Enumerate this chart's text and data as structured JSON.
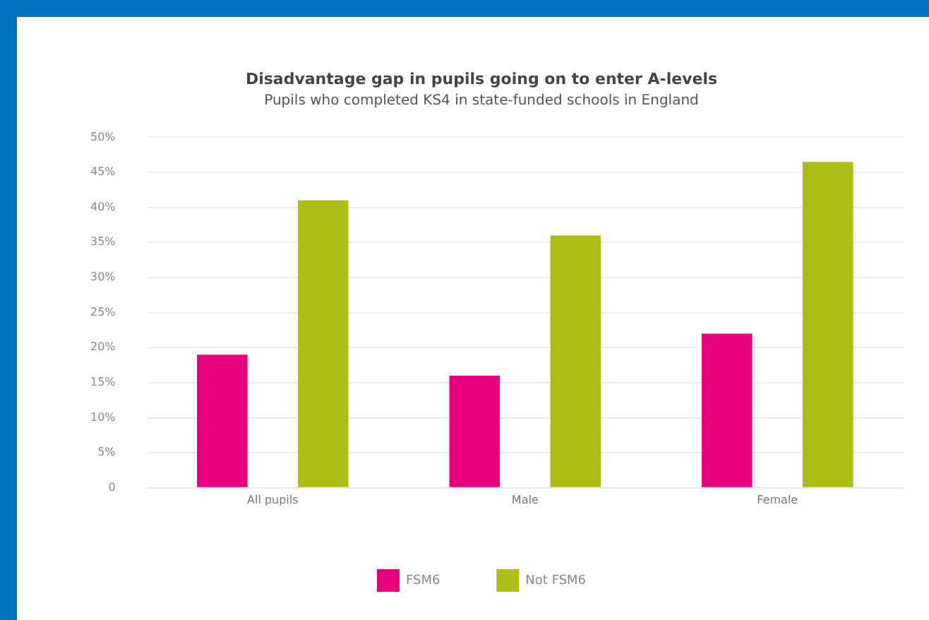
{
  "chart_data": {
    "type": "bar",
    "title": "Disadvantage gap in pupils going on to enter A-levels",
    "subtitle": "Pupils who completed KS4 in state-funded schools in England",
    "categories": [
      "All pupils",
      "Male",
      "Female"
    ],
    "series": [
      {
        "name": "FSM6",
        "color": "#e6007e",
        "values": [
          19,
          16,
          22
        ]
      },
      {
        "name": "Not FSM6",
        "color": "#aebd15",
        "values": [
          41,
          36,
          46.5
        ]
      }
    ],
    "ylim": [
      0,
      50
    ],
    "yticks": [
      0,
      {
        "value": 5,
        "label": "5%"
      },
      {
        "value": 10,
        "label": "10%"
      },
      {
        "value": 15,
        "label": "15%"
      },
      {
        "value": 20,
        "label": "20%"
      },
      {
        "value": 25,
        "label": "25%"
      },
      {
        "value": 30,
        "label": "30%"
      },
      {
        "value": 35,
        "label": "35%"
      },
      {
        "value": 40,
        "label": "40%"
      },
      {
        "value": 45,
        "label": "45%"
      },
      {
        "value": 50,
        "label": "50%"
      }
    ],
    "grid": "y",
    "legend": "bottom"
  }
}
